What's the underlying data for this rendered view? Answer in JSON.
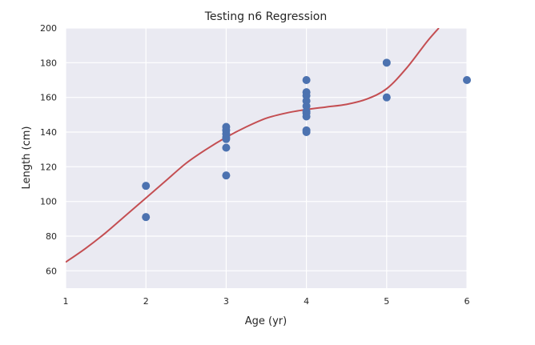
{
  "chart_data": {
    "type": "scatter",
    "title": "Testing n6 Regression",
    "xlabel": "Age (yr)",
    "ylabel": "Length (cm)",
    "xlim": [
      1,
      6
    ],
    "ylim": [
      50,
      200
    ],
    "xticks": [
      1,
      2,
      3,
      4,
      5,
      6
    ],
    "yticks": [
      60,
      80,
      100,
      120,
      140,
      160,
      180,
      200
    ],
    "grid": true,
    "legend": "none",
    "colors": {
      "background": "#eaeaf2",
      "grid": "#ffffff",
      "points": "#4c72b0",
      "curve": "#c44e52"
    },
    "series": [
      {
        "kind": "points",
        "x": [
          2,
          2,
          3,
          3,
          3,
          3,
          3,
          3,
          3,
          4,
          4,
          4,
          4,
          4,
          4,
          4,
          4,
          4,
          4,
          5,
          5,
          6
        ],
        "y": [
          109,
          91,
          143,
          141,
          139,
          137,
          136,
          131,
          115,
          170,
          163,
          161,
          158,
          155,
          152,
          151,
          149,
          141,
          140,
          180,
          160,
          170
        ]
      },
      {
        "kind": "regression-curve",
        "x": [
          1,
          1.25,
          1.5,
          1.75,
          2,
          2.25,
          2.5,
          2.75,
          3,
          3.25,
          3.5,
          3.75,
          4,
          4.25,
          4.5,
          4.75,
          5,
          5.25,
          5.5,
          5.65
        ],
        "y": [
          65,
          73,
          82,
          92,
          102,
          112,
          122,
          130,
          137,
          143,
          148,
          151,
          153,
          154.5,
          156,
          159,
          165,
          177,
          192,
          200
        ]
      }
    ]
  }
}
